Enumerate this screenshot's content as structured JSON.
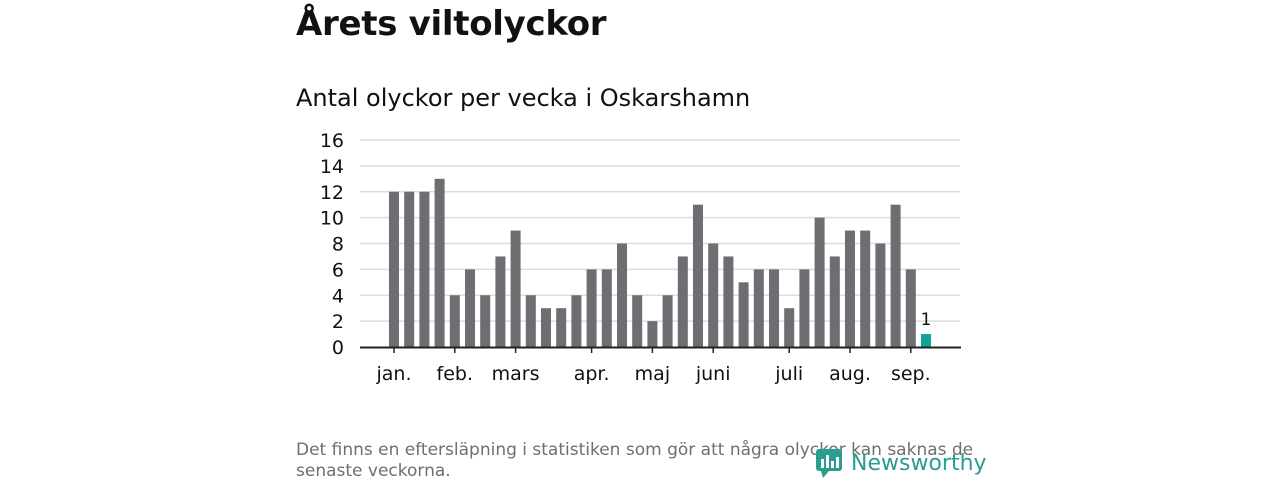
{
  "title": "Årets viltolyckor",
  "subtitle": "Antal olyckor per vecka i Oskarshamn",
  "note": "Det finns en eftersläpning i statistiken som gör att några olyckor kan saknas de senaste veckorna.",
  "brand": "Newsworthy",
  "colors": {
    "bar": "#6e6d72",
    "highlight": "#0fa39a",
    "grid": "#dcdcdc",
    "brand": "#2a9c90"
  },
  "chart_data": {
    "type": "bar",
    "title": "Antal olyckor per vecka i Oskarshamn",
    "xlabel": "",
    "ylabel": "",
    "ylim": [
      0,
      16
    ],
    "yticks": [
      0,
      2,
      4,
      6,
      8,
      10,
      12,
      14,
      16
    ],
    "grid": true,
    "values": [
      12,
      12,
      12,
      13,
      4,
      6,
      4,
      7,
      9,
      4,
      3,
      3,
      4,
      6,
      6,
      8,
      4,
      2,
      4,
      7,
      11,
      8,
      7,
      5,
      6,
      6,
      3,
      6,
      10,
      7,
      9,
      9,
      8,
      11,
      6,
      1
    ],
    "highlight_last": true,
    "data_labels": [
      {
        "index": 35,
        "text": "1"
      }
    ],
    "month_labels": [
      {
        "label": "jan.",
        "at_bar": 0
      },
      {
        "label": "feb.",
        "at_bar": 4
      },
      {
        "label": "mars",
        "at_bar": 8
      },
      {
        "label": "apr.",
        "at_bar": 13
      },
      {
        "label": "maj",
        "at_bar": 17
      },
      {
        "label": "juni",
        "at_bar": 21
      },
      {
        "label": "juli",
        "at_bar": 26
      },
      {
        "label": "aug.",
        "at_bar": 30
      },
      {
        "label": "sep.",
        "at_bar": 34
      }
    ]
  }
}
